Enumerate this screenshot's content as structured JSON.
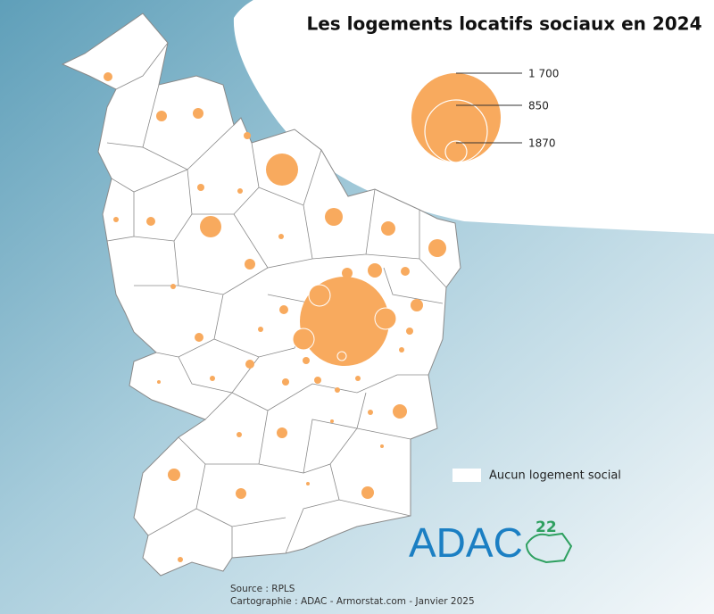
{
  "title": "Les logements locatifs sociaux en 2024",
  "legend": {
    "circles": [
      "1 700",
      "850",
      "1870"
    ],
    "no_housing": "Aucun logement social"
  },
  "logo": {
    "name": "ADAC",
    "number": "22"
  },
  "source": [
    "Source : RPLS",
    "Cartographie : ADAC - Armorstat.com - Janvier 2025"
  ]
}
